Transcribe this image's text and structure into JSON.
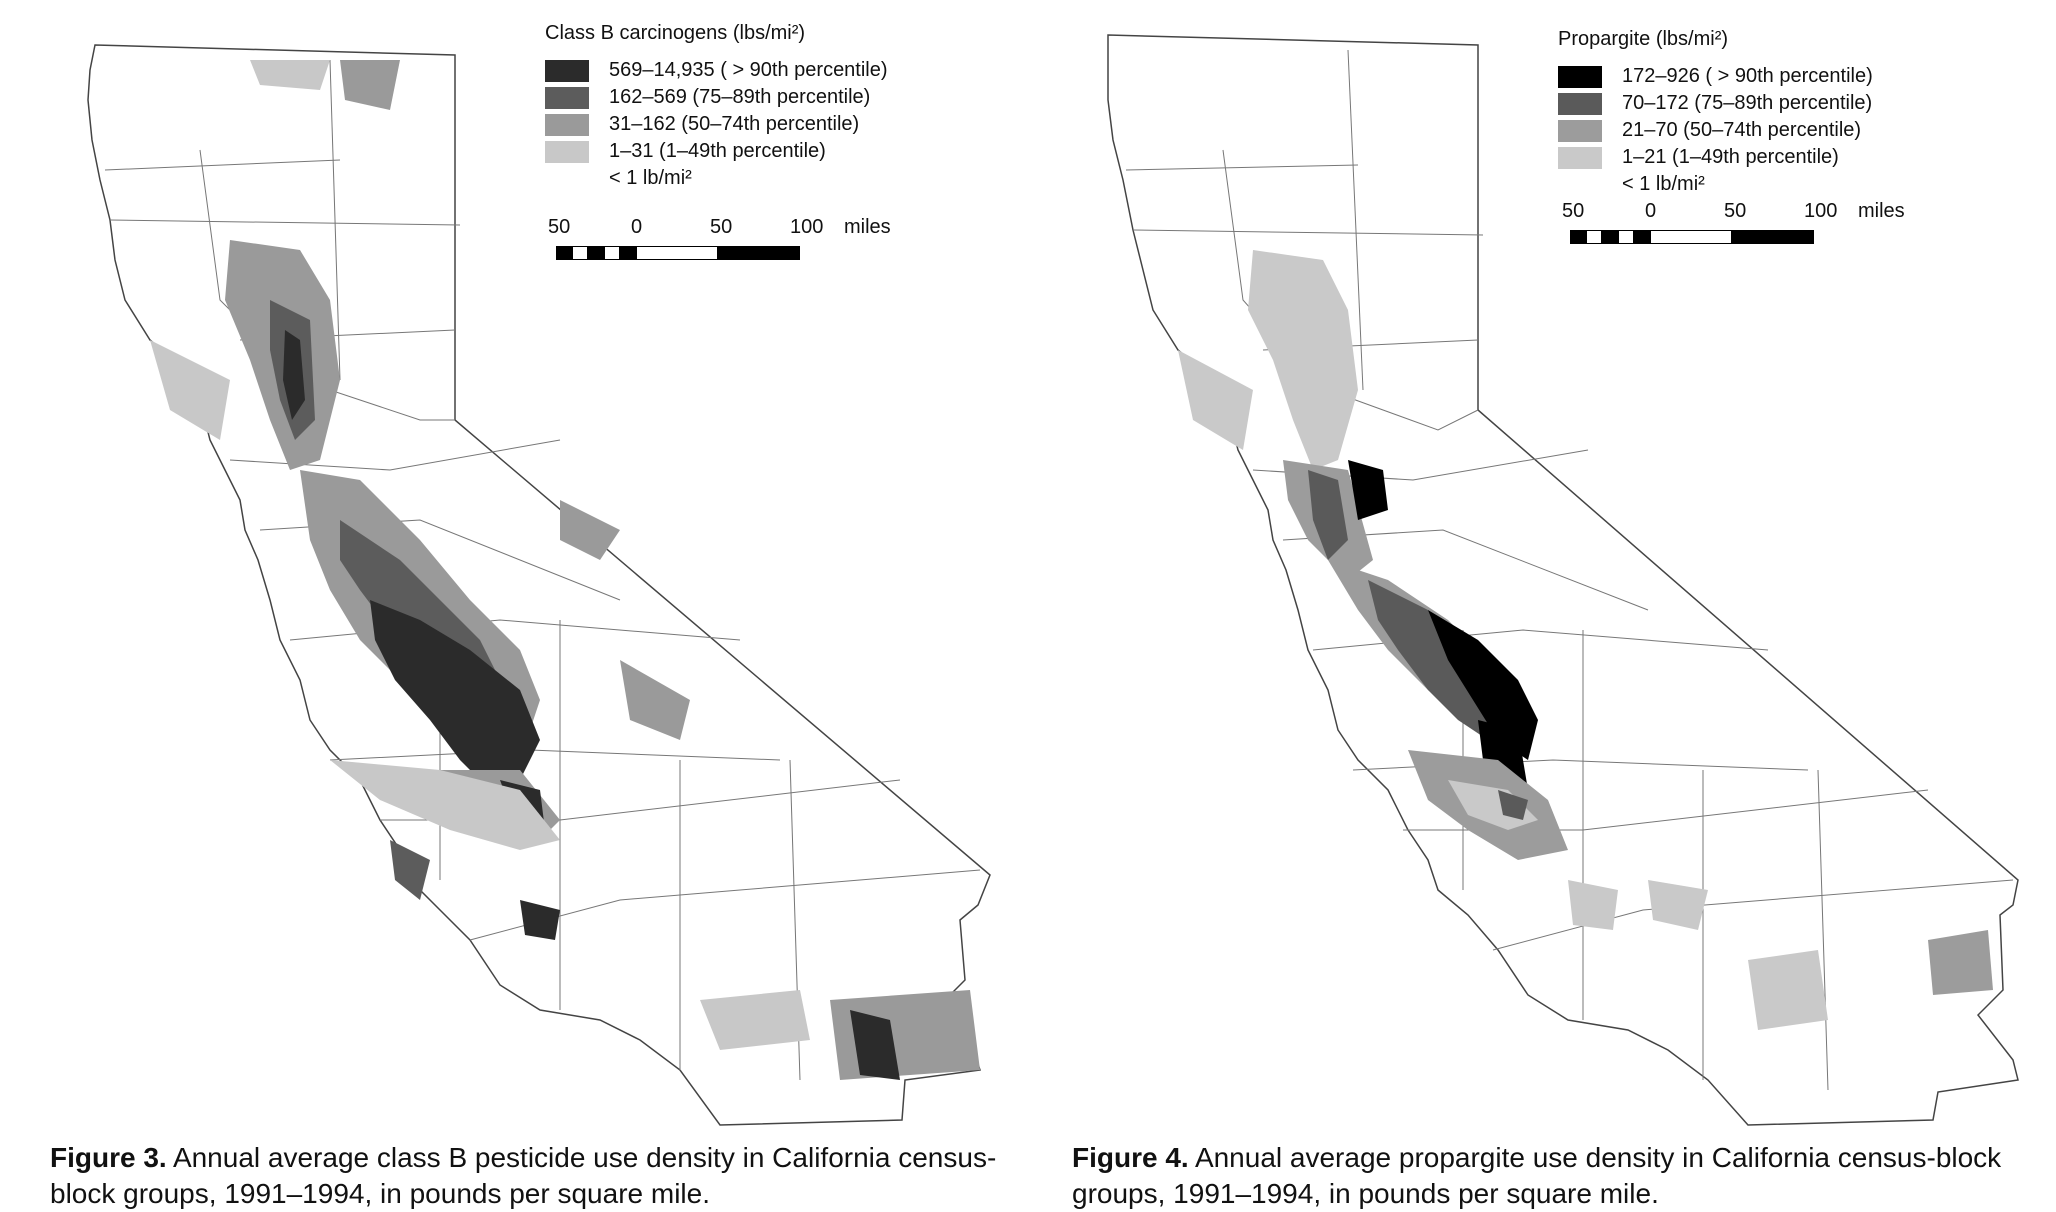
{
  "figures": [
    {
      "id": "fig3",
      "legend_title": "Class B carcinogens (lbs/mi²)",
      "classes": [
        {
          "label": "569–14,935 ( > 90th percentile)",
          "color": "#2b2b2b"
        },
        {
          "label": "162–569 (75–89th percentile)",
          "color": "#5c5c5c"
        },
        {
          "label": "31–162 (50–74th percentile)",
          "color": "#9a9a9a"
        },
        {
          "label": "1–31 (1–49th percentile)",
          "color": "#c8c8c8"
        }
      ],
      "below_label": "< 1 lb/mi²",
      "scale": {
        "ticks": [
          "50",
          "0",
          "50",
          "100"
        ],
        "unit": "miles"
      },
      "caption_bold": "Figure 3.",
      "caption_text": " Annual average class B pesticide use density in California census-block groups, 1991–1994, in pounds per square mile."
    },
    {
      "id": "fig4",
      "legend_title": "Propargite (lbs/mi²)",
      "classes": [
        {
          "label": "172–926 ( > 90th percentile)",
          "color": "#000000"
        },
        {
          "label": "70–172 (75–89th percentile)",
          "color": "#5a5a5a"
        },
        {
          "label": "21–70 (50–74th percentile)",
          "color": "#9c9c9c"
        },
        {
          "label": "1–21 (1–49th percentile)",
          "color": "#c9c9c9"
        }
      ],
      "below_label": "< 1 lb/mi²",
      "scale": {
        "ticks": [
          "50",
          "0",
          "50",
          "100"
        ],
        "unit": "miles"
      },
      "caption_bold": "Figure 4.",
      "caption_text": " Annual average propargite use density in California census-block groups, 1991–1994, in pounds per square mile."
    }
  ]
}
